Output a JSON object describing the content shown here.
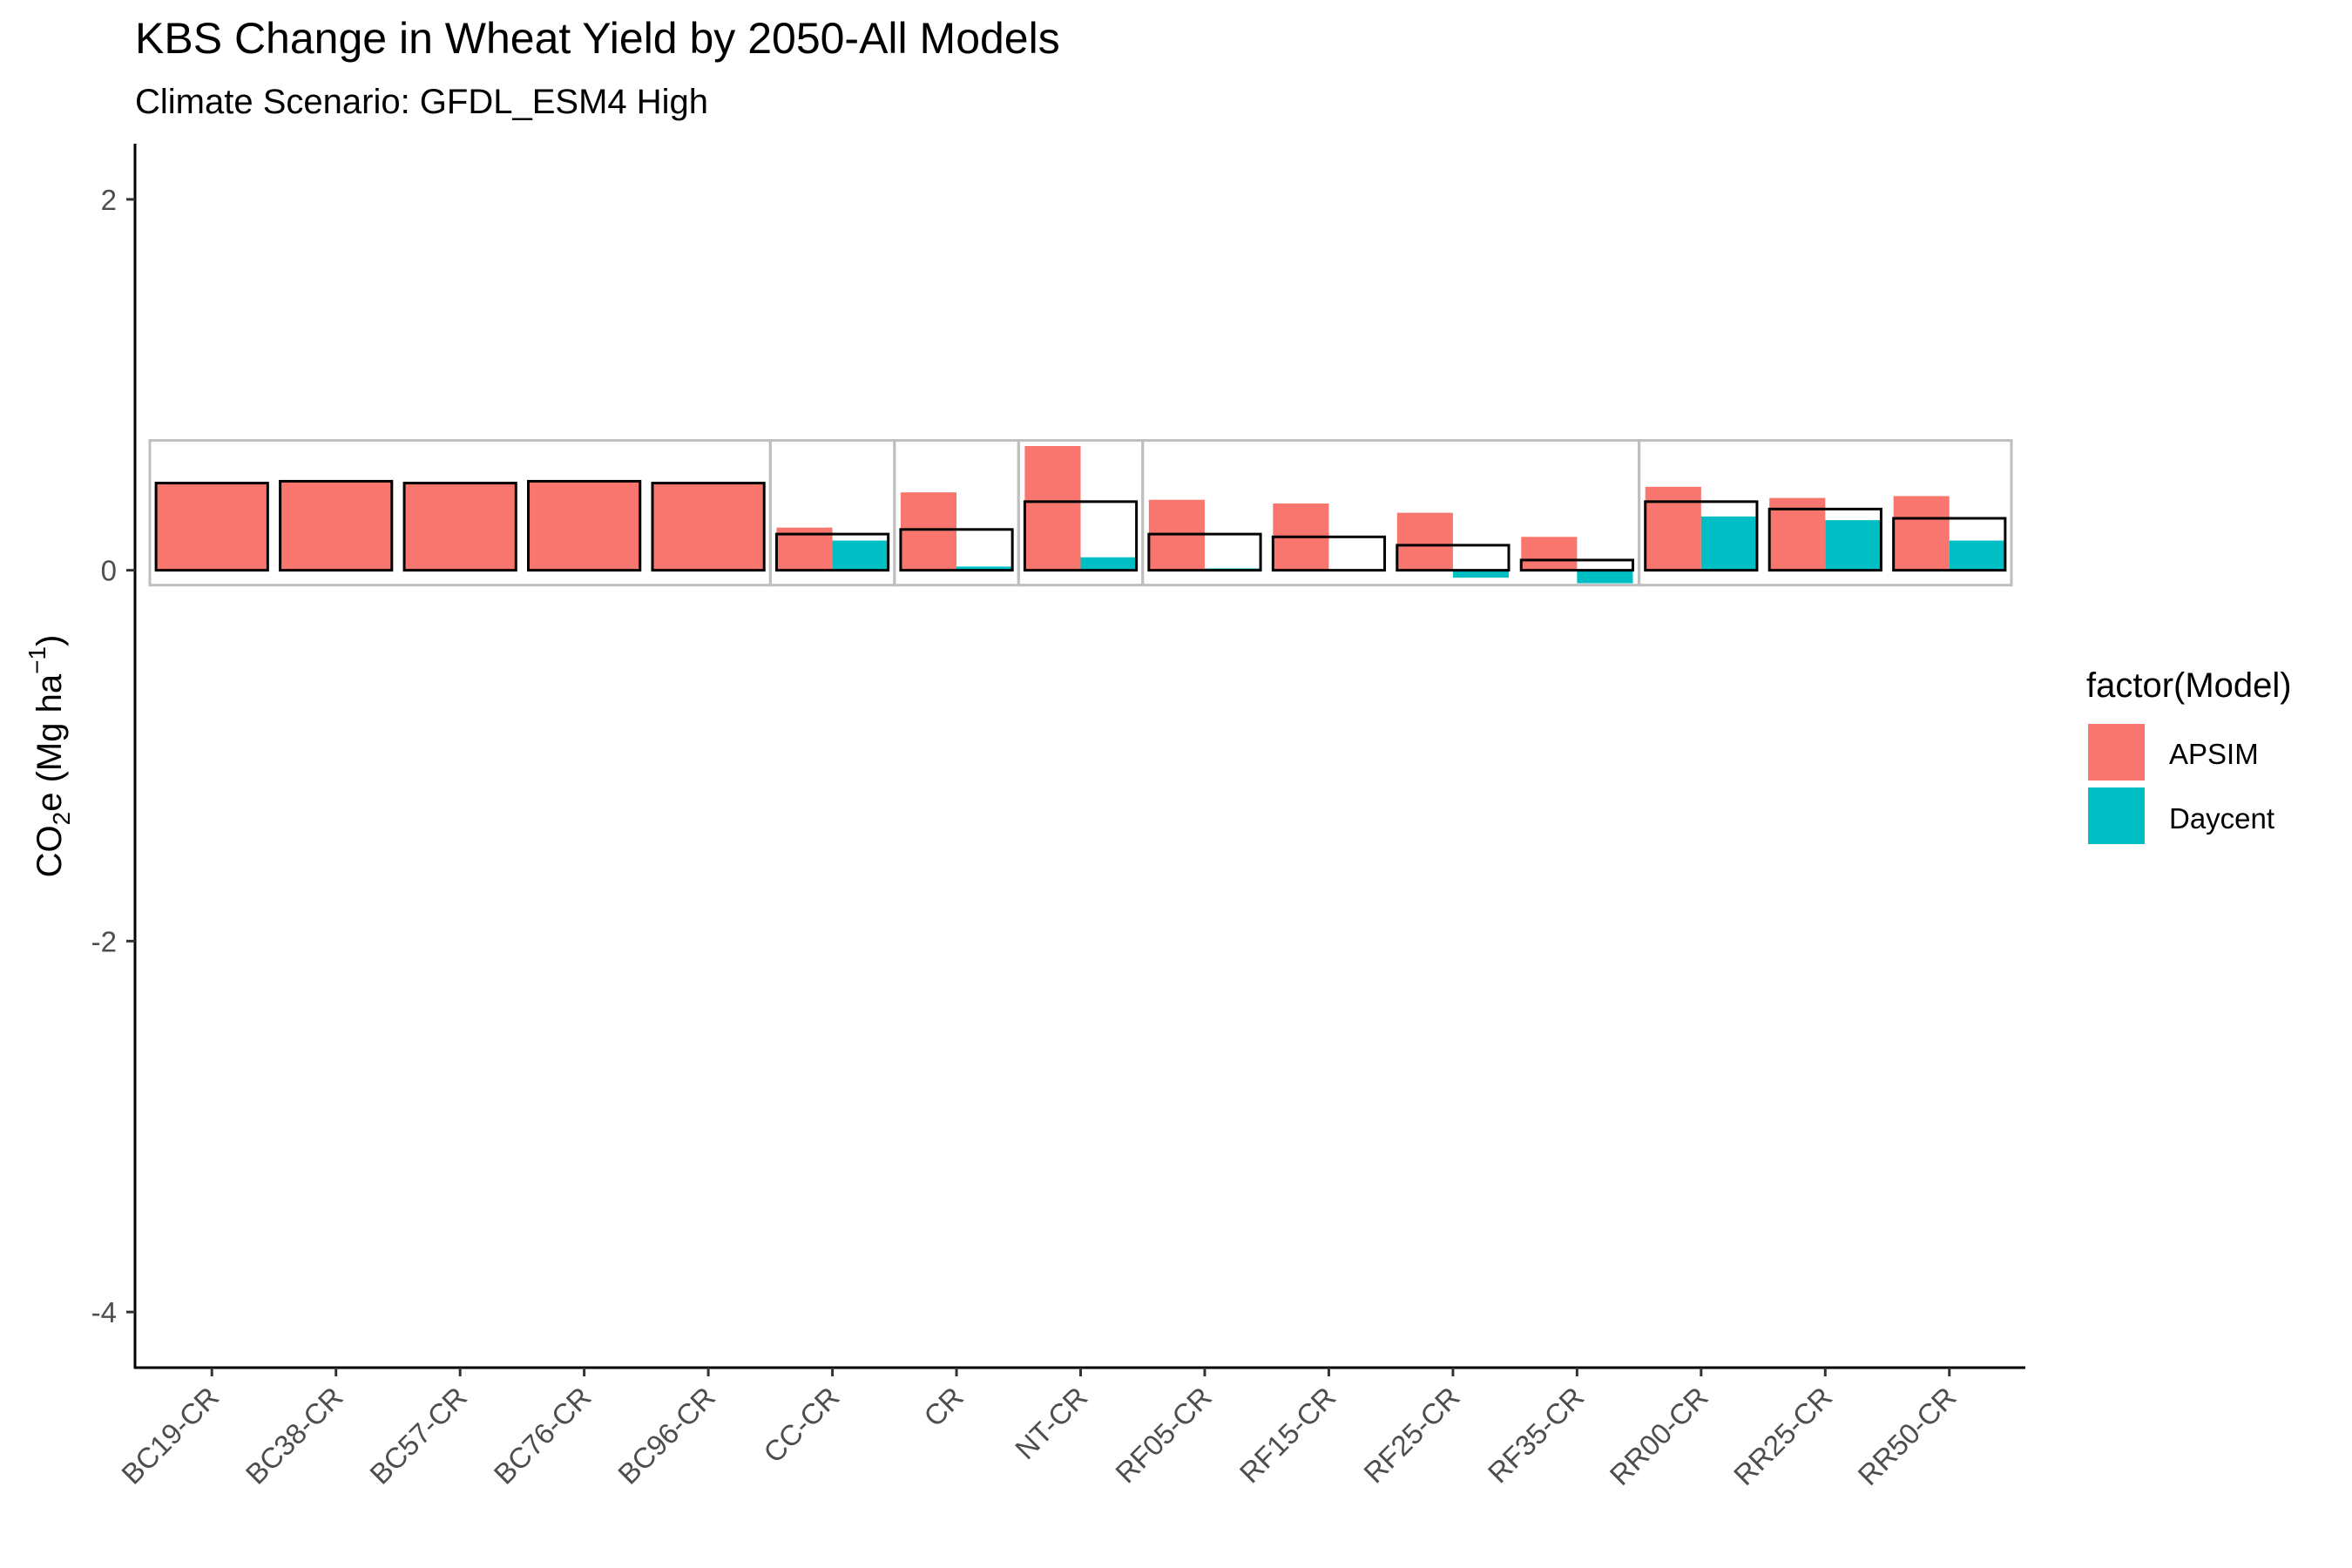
{
  "chart_data": {
    "type": "bar",
    "title": "KBS Change in Wheat Yield by 2050-All Models",
    "subtitle": "Climate Scenario: GFDL_ESM4 High",
    "ylabel_main": "CO",
    "ylabel_sub": "2",
    "ylabel_rest": "e (Mg ha",
    "ylabel_sup": "−1",
    "ylabel_close": ")",
    "ylim": [
      -4.3,
      2.3
    ],
    "yticks": [
      -4,
      -2,
      0,
      2
    ],
    "ytick_labels": [
      "-4",
      "-2",
      "0",
      "2"
    ],
    "grid": false,
    "categories": [
      "BC19-CR",
      "BC38-CR",
      "BC57-CR",
      "BC76-CR",
      "BC96-CR",
      "CC-CR",
      "CR",
      "NT-CR",
      "RF05-CR",
      "RF15-CR",
      "RF25-CR",
      "RF35-CR",
      "RR00-CR",
      "RR25-CR",
      "RR50-CR"
    ],
    "series": [
      {
        "name": "APSIM",
        "color": "#F8766D",
        "values": [
          0.47,
          0.48,
          0.47,
          0.48,
          0.47,
          0.23,
          0.42,
          0.67,
          0.38,
          0.36,
          0.31,
          0.18,
          0.45,
          0.39,
          0.4
        ]
      },
      {
        "name": "Daycent",
        "color": "#00BFC4",
        "values": [
          null,
          null,
          null,
          null,
          null,
          0.16,
          0.02,
          0.07,
          0.01,
          0.0,
          -0.04,
          -0.07,
          0.29,
          0.27,
          0.16
        ]
      }
    ],
    "mean_outline": {
      "values": [
        0.47,
        0.48,
        0.47,
        0.48,
        0.47,
        0.195,
        0.22,
        0.37,
        0.195,
        0.18,
        0.135,
        0.055,
        0.37,
        0.33,
        0.28
      ],
      "color": "#000000"
    },
    "group_boxes": {
      "color": "#bebebe",
      "ranges": [
        [
          0,
          4
        ],
        [
          5,
          5
        ],
        [
          6,
          6
        ],
        [
          7,
          7
        ],
        [
          8,
          11
        ],
        [
          12,
          14
        ]
      ],
      "ymin": -0.08,
      "ymax": 0.7
    },
    "legend": {
      "title": "factor(Model)",
      "position": "right",
      "items": [
        {
          "label": "APSIM",
          "color": "#F8766D"
        },
        {
          "label": "Daycent",
          "color": "#00BFC4"
        }
      ]
    }
  }
}
